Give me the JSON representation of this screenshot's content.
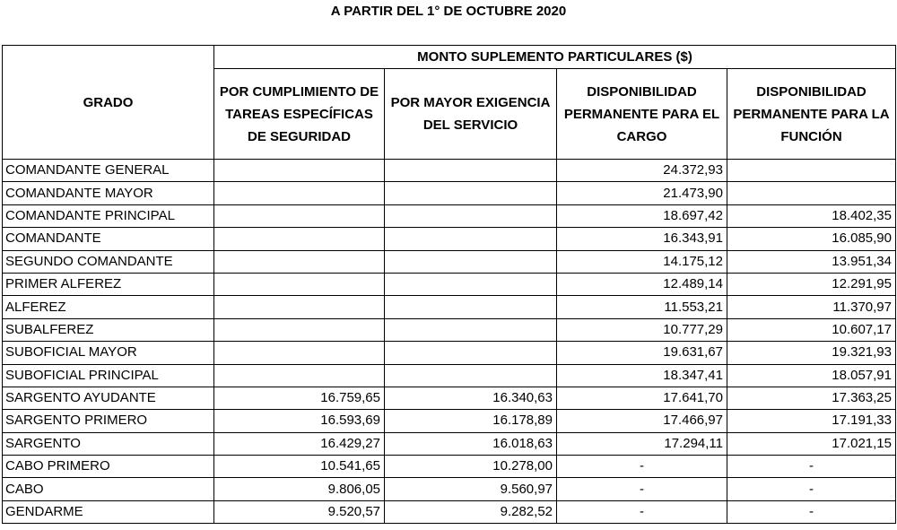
{
  "title": "A PARTIR DEL 1° DE OCTUBRE 2020",
  "table": {
    "group_header": "MONTO SUPLEMENTO PARTICULARES ($)",
    "columns": [
      "GRADO",
      "POR CUMPLIMIENTO DE TAREAS ESPECÍFICAS DE SEGURIDAD",
      "POR MAYOR EXIGENCIA DEL SERVICIO",
      "DISPONIBILIDAD PERMANENTE PARA EL CARGO",
      "DISPONIBILIDAD PERMANENTE PARA LA FUNCIÓN"
    ],
    "rows": [
      [
        "COMANDANTE GENERAL",
        "",
        "",
        "24.372,93",
        ""
      ],
      [
        "COMANDANTE MAYOR",
        "",
        "",
        "21.473,90",
        ""
      ],
      [
        "COMANDANTE PRINCIPAL",
        "",
        "",
        "18.697,42",
        "18.402,35"
      ],
      [
        "COMANDANTE",
        "",
        "",
        "16.343,91",
        "16.085,90"
      ],
      [
        "SEGUNDO COMANDANTE",
        "",
        "",
        "14.175,12",
        "13.951,34"
      ],
      [
        "PRIMER ALFEREZ",
        "",
        "",
        "12.489,14",
        "12.291,95"
      ],
      [
        "ALFEREZ",
        "",
        "",
        "11.553,21",
        "11.370,97"
      ],
      [
        "SUBALFEREZ",
        "",
        "",
        "10.777,29",
        "10.607,17"
      ],
      [
        "SUBOFICIAL MAYOR",
        "",
        "",
        "19.631,67",
        "19.321,93"
      ],
      [
        "SUBOFICIAL PRINCIPAL",
        "",
        "",
        "18.347,41",
        "18.057,91"
      ],
      [
        "SARGENTO AYUDANTE",
        "16.759,65",
        "16.340,63",
        "17.641,70",
        "17.363,25"
      ],
      [
        "SARGENTO PRIMERO",
        "16.593,69",
        "16.178,89",
        "17.466,97",
        "17.191,33"
      ],
      [
        "SARGENTO",
        "16.429,27",
        "16.018,63",
        "17.294,11",
        "17.021,15"
      ],
      [
        "CABO PRIMERO",
        "10.541,65",
        "10.278,00",
        "-",
        "-"
      ],
      [
        "CABO",
        "9.806,05",
        "9.560,97",
        "-",
        "-"
      ],
      [
        "GENDARME",
        "9.520,57",
        "9.282,52",
        "-",
        "-"
      ]
    ]
  }
}
